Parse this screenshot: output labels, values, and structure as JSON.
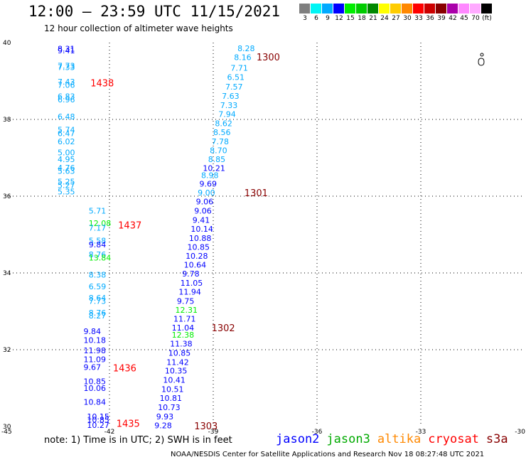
{
  "header": {
    "title": "12:00 — 23:59 UTC 11/15/2021",
    "subtitle": "12 hour collection of altimeter wave heights"
  },
  "colorbar": {
    "colors": [
      "#7f7f7f",
      "#00f5f5",
      "#00aaff",
      "#0000ff",
      "#00ee00",
      "#00cc00",
      "#008800",
      "#ffff00",
      "#ffcc00",
      "#ff8800",
      "#ff0000",
      "#cc0000",
      "#880000",
      "#aa00aa",
      "#ff88ff",
      "#ffaaff",
      "#000000"
    ],
    "labels": [
      "3",
      "6",
      "9",
      "12",
      "15",
      "18",
      "21",
      "24",
      "27",
      "30",
      "33",
      "36",
      "39",
      "42",
      "45",
      "70",
      "(ft)"
    ]
  },
  "axes": {
    "lat_labels": [
      "40",
      "38",
      "36",
      "34",
      "32",
      "30"
    ],
    "lon_labels": [
      "-45",
      "-42",
      "-39",
      "-36",
      "-33",
      "-30"
    ]
  },
  "tracks": [
    {
      "time": "1438",
      "time_color": "#ff0000",
      "time_lat": 38.95,
      "time_lon": -42.55,
      "points": [
        {
          "lat": 39.84,
          "lon": -43.5,
          "v": "8.31",
          "c": "#0000ff"
        },
        {
          "lat": 39.8,
          "lon": -43.5,
          "v": "9.41",
          "c": "#0000ff"
        },
        {
          "lat": 39.4,
          "lon": -43.5,
          "v": "7.73",
          "c": "#00aaff"
        },
        {
          "lat": 39.36,
          "lon": -43.5,
          "v": "7.33",
          "c": "#00aaff"
        },
        {
          "lat": 38.98,
          "lon": -43.5,
          "v": "7.43",
          "c": "#00aaff"
        },
        {
          "lat": 38.9,
          "lon": -43.5,
          "v": "7.06",
          "c": "#00aaff"
        },
        {
          "lat": 38.6,
          "lon": -43.5,
          "v": "6.83",
          "c": "#00aaff"
        },
        {
          "lat": 38.52,
          "lon": -43.5,
          "v": "6.96",
          "c": "#00aaff"
        },
        {
          "lat": 38.07,
          "lon": -43.5,
          "v": "6.48",
          "c": "#00aaff"
        },
        {
          "lat": 37.73,
          "lon": -43.5,
          "v": "5.74",
          "c": "#00aaff"
        },
        {
          "lat": 37.64,
          "lon": -43.5,
          "v": "6.47",
          "c": "#00aaff"
        },
        {
          "lat": 37.43,
          "lon": -43.5,
          "v": "6.02",
          "c": "#00aaff"
        },
        {
          "lat": 37.14,
          "lon": -43.5,
          "v": "5.00",
          "c": "#00aaff"
        },
        {
          "lat": 36.96,
          "lon": -43.5,
          "v": "4.95",
          "c": "#00aaff"
        },
        {
          "lat": 36.74,
          "lon": -43.5,
          "v": "4.76",
          "c": "#00aaff"
        },
        {
          "lat": 36.66,
          "lon": -43.5,
          "v": "5.63",
          "c": "#00aaff"
        },
        {
          "lat": 36.38,
          "lon": -43.5,
          "v": "5.25",
          "c": "#00aaff"
        },
        {
          "lat": 36.29,
          "lon": -43.5,
          "v": "5.27",
          "c": "#00aaff"
        },
        {
          "lat": 36.12,
          "lon": -43.5,
          "v": "5.35",
          "c": "#00aaff"
        }
      ]
    },
    {
      "time": "1437",
      "time_color": "#ff0000",
      "time_lat": 35.25,
      "time_lon": -41.75,
      "points": [
        {
          "lat": 35.62,
          "lon": -42.6,
          "v": "5.71",
          "c": "#00aaff"
        },
        {
          "lat": 35.3,
          "lon": -42.6,
          "v": "12.08",
          "c": "#00ee00"
        },
        {
          "lat": 35.18,
          "lon": -42.6,
          "v": "7.17",
          "c": "#00aaff"
        },
        {
          "lat": 34.84,
          "lon": -42.6,
          "v": "5.58",
          "c": "#00aaff"
        },
        {
          "lat": 34.74,
          "lon": -42.6,
          "v": "9.84",
          "c": "#0000ff"
        },
        {
          "lat": 34.48,
          "lon": -42.6,
          "v": "8.76",
          "c": "#00aaff"
        },
        {
          "lat": 34.4,
          "lon": -42.6,
          "v": "13.84",
          "c": "#00ee00"
        },
        {
          "lat": 33.95,
          "lon": -42.6,
          "v": "8.38",
          "c": "#00aaff"
        },
        {
          "lat": 33.65,
          "lon": -42.6,
          "v": "6.59",
          "c": "#00aaff"
        },
        {
          "lat": 33.35,
          "lon": -42.6,
          "v": "8.64",
          "c": "#00aaff"
        },
        {
          "lat": 33.27,
          "lon": -42.6,
          "v": "7.73",
          "c": "#00aaff"
        },
        {
          "lat": 32.96,
          "lon": -42.6,
          "v": "8.76",
          "c": "#00aaff"
        },
        {
          "lat": 32.89,
          "lon": -42.6,
          "v": "8.27",
          "c": "#00aaff"
        }
      ]
    },
    {
      "time": "1436",
      "time_color": "#ff0000",
      "time_lat": 31.53,
      "time_lon": -41.9,
      "points": [
        {
          "lat": 32.48,
          "lon": -42.75,
          "v": "9.84",
          "c": "#0000ff"
        },
        {
          "lat": 32.25,
          "lon": -42.75,
          "v": "10.18",
          "c": "#0000ff"
        },
        {
          "lat": 31.98,
          "lon": -42.75,
          "v": "11.98",
          "c": "#0000ff"
        },
        {
          "lat": 31.75,
          "lon": -42.75,
          "v": "11.09",
          "c": "#0000ff"
        },
        {
          "lat": 31.55,
          "lon": -42.75,
          "v": "9.67",
          "c": "#0000ff"
        },
        {
          "lat": 31.18,
          "lon": -42.75,
          "v": "10.85",
          "c": "#0000ff"
        },
        {
          "lat": 31.0,
          "lon": -42.75,
          "v": "10.06",
          "c": "#0000ff"
        },
        {
          "lat": 30.64,
          "lon": -42.75,
          "v": "10.84",
          "c": "#0000ff"
        }
      ]
    },
    {
      "time": "1435",
      "time_color": "#ff0000",
      "time_lat": 30.08,
      "time_lon": -41.8,
      "points": [
        {
          "lat": 30.26,
          "lon": -42.65,
          "v": "10.15",
          "c": "#0000ff"
        },
        {
          "lat": 30.18,
          "lon": -42.65,
          "v": "10.85",
          "c": "#0000ff"
        },
        {
          "lat": 30.04,
          "lon": -42.65,
          "v": "10.27",
          "c": "#0000ff"
        }
      ]
    },
    {
      "time": "1300",
      "time_color": "#880000",
      "time_lat": 39.63,
      "time_lon": -37.75,
      "points": [
        {
          "lat": 39.85,
          "lon": -38.3,
          "v": "8.28",
          "c": "#00aaff"
        },
        {
          "lat": 39.62,
          "lon": -38.4,
          "v": "8.16",
          "c": "#00aaff"
        },
        {
          "lat": 39.34,
          "lon": -38.5,
          "v": "7.71",
          "c": "#00aaff"
        },
        {
          "lat": 39.1,
          "lon": -38.6,
          "v": "6.51",
          "c": "#00aaff"
        },
        {
          "lat": 38.85,
          "lon": -38.65,
          "v": "7.57",
          "c": "#00aaff"
        },
        {
          "lat": 38.61,
          "lon": -38.75,
          "v": "7.63",
          "c": "#00aaff"
        },
        {
          "lat": 38.37,
          "lon": -38.8,
          "v": "7.33",
          "c": "#00aaff"
        },
        {
          "lat": 38.14,
          "lon": -38.85,
          "v": "7.94",
          "c": "#00aaff"
        },
        {
          "lat": 37.9,
          "lon": -38.95,
          "v": "8.62",
          "c": "#00aaff"
        },
        {
          "lat": 37.67,
          "lon": -39.0,
          "v": "8.56",
          "c": "#00aaff"
        },
        {
          "lat": 37.43,
          "lon": -39.05,
          "v": "7.78",
          "c": "#00aaff"
        },
        {
          "lat": 37.19,
          "lon": -39.1,
          "v": "8.70",
          "c": "#00aaff"
        },
        {
          "lat": 36.96,
          "lon": -39.15,
          "v": "8.85",
          "c": "#00aaff"
        }
      ]
    },
    {
      "time": "1301",
      "time_color": "#880000",
      "time_lat": 36.09,
      "time_lon": -38.1,
      "points": [
        {
          "lat": 36.73,
          "lon": -39.3,
          "v": "10.21",
          "c": "#0000ff"
        },
        {
          "lat": 36.55,
          "lon": -39.35,
          "v": "8.98",
          "c": "#00aaff"
        },
        {
          "lat": 36.32,
          "lon": -39.4,
          "v": "9.69",
          "c": "#0000ff"
        },
        {
          "lat": 36.09,
          "lon": -39.45,
          "v": "9.00",
          "c": "#00aaff"
        },
        {
          "lat": 35.86,
          "lon": -39.5,
          "v": "9.06",
          "c": "#0000ff"
        },
        {
          "lat": 35.62,
          "lon": -39.55,
          "v": "9.06",
          "c": "#0000ff"
        },
        {
          "lat": 35.38,
          "lon": -39.6,
          "v": "9.41",
          "c": "#0000ff"
        },
        {
          "lat": 35.15,
          "lon": -39.65,
          "v": "10.14",
          "c": "#0000ff"
        },
        {
          "lat": 34.91,
          "lon": -39.7,
          "v": "10.88",
          "c": "#0000ff"
        },
        {
          "lat": 34.68,
          "lon": -39.75,
          "v": "10.85",
          "c": "#0000ff"
        },
        {
          "lat": 34.44,
          "lon": -39.8,
          "v": "10.28",
          "c": "#0000ff"
        },
        {
          "lat": 34.21,
          "lon": -39.85,
          "v": "10.64",
          "c": "#0000ff"
        },
        {
          "lat": 33.98,
          "lon": -39.9,
          "v": "9.78",
          "c": "#0000ff"
        },
        {
          "lat": 33.74,
          "lon": -39.95,
          "v": "11.05",
          "c": "#0000ff"
        },
        {
          "lat": 33.51,
          "lon": -40.0,
          "v": "11.94",
          "c": "#0000ff"
        },
        {
          "lat": 33.27,
          "lon": -40.05,
          "v": "9.75",
          "c": "#0000ff"
        },
        {
          "lat": 33.04,
          "lon": -40.1,
          "v": "12.31",
          "c": "#00ee00"
        },
        {
          "lat": 32.81,
          "lon": -40.15,
          "v": "11.71",
          "c": "#0000ff"
        }
      ]
    },
    {
      "time": "1302",
      "time_color": "#880000",
      "time_lat": 32.57,
      "time_lon": -39.05,
      "points": [
        {
          "lat": 32.57,
          "lon": -40.2,
          "v": "11.04",
          "c": "#0000ff"
        },
        {
          "lat": 32.39,
          "lon": -40.2,
          "v": "12.38",
          "c": "#00ee00"
        },
        {
          "lat": 32.16,
          "lon": -40.25,
          "v": "11.38",
          "c": "#0000ff"
        },
        {
          "lat": 31.92,
          "lon": -40.3,
          "v": "10.85",
          "c": "#0000ff"
        },
        {
          "lat": 31.68,
          "lon": -40.35,
          "v": "11.42",
          "c": "#0000ff"
        },
        {
          "lat": 31.45,
          "lon": -40.4,
          "v": "10.35",
          "c": "#0000ff"
        },
        {
          "lat": 31.21,
          "lon": -40.45,
          "v": "10.41",
          "c": "#0000ff"
        },
        {
          "lat": 30.97,
          "lon": -40.5,
          "v": "10.51",
          "c": "#0000ff"
        },
        {
          "lat": 30.74,
          "lon": -40.55,
          "v": "10.81",
          "c": "#0000ff"
        },
        {
          "lat": 30.5,
          "lon": -40.6,
          "v": "10.73",
          "c": "#0000ff"
        },
        {
          "lat": 30.26,
          "lon": -40.65,
          "v": "9.93",
          "c": "#0000ff"
        },
        {
          "lat": 30.03,
          "lon": -40.7,
          "v": "9.28",
          "c": "#0000ff"
        }
      ]
    },
    {
      "time": "1303",
      "time_color": "#880000",
      "time_lat": 30.02,
      "time_lon": -39.55,
      "points": []
    }
  ],
  "footer": {
    "note": "note: 1) Time is in UTC; 2) SWH is in feet",
    "legend": [
      {
        "label": "jason2",
        "color": "#0000ff"
      },
      {
        "label": "jason3",
        "color": "#00aa00"
      },
      {
        "label": "altika",
        "color": "#ff8800"
      },
      {
        "label": "cryosat",
        "color": "#ff0000"
      },
      {
        "label": "s3a",
        "color": "#880000"
      }
    ],
    "credit": "NOAA/NESDIS Center for Satellite Applications and Research     Nov 18 08:27:48 UTC 2021"
  }
}
